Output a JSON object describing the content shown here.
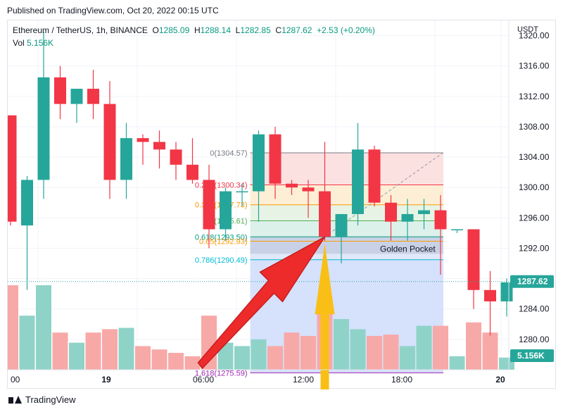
{
  "published": "Published on TradingView.com, Oct 20, 2022 00:15 UTC",
  "legend": {
    "symbol": "Ethereum / TetherUS, 1h, BINANCE",
    "o_label": "O",
    "o": "1285.09",
    "h_label": "H",
    "h": "1288.14",
    "l_label": "L",
    "l": "1282.85",
    "c_label": "C",
    "c": "1287.62",
    "change": "+2.53 (+0.20%)",
    "vol_label": "Vol",
    "vol": "5.156K"
  },
  "currency": "USDT",
  "footer": {
    "brand": "TradingView"
  },
  "colors": {
    "up": "#26a69a",
    "down": "#f23645",
    "up_vol": "#8fd3c8",
    "down_vol": "#f7a9a7"
  },
  "chart_data": {
    "type": "candlestick",
    "ylim": [
      1276,
      1322
    ],
    "y_ticks": [
      "1320.00",
      "1316.00",
      "1312.00",
      "1308.00",
      "1304.00",
      "1300.00",
      "1296.00",
      "1292.00",
      "1288.00",
      "1284.00",
      "1280.00"
    ],
    "x_ticks": [
      "00",
      "19",
      "06:00",
      "12:00",
      "18:00",
      "20"
    ],
    "last_price_label": "1287.62",
    "last_volume_label": "5.156K",
    "candles": [
      {
        "o": 1309.5,
        "h": 1309.5,
        "l": 1295.0,
        "c": 1295.5
      },
      {
        "o": 1295.0,
        "h": 1301.5,
        "l": 1286.5,
        "c": 1301.0
      },
      {
        "o": 1301.0,
        "h": 1320.5,
        "l": 1298.5,
        "c": 1314.5
      },
      {
        "o": 1314.5,
        "h": 1316.0,
        "l": 1309.0,
        "c": 1311.0
      },
      {
        "o": 1311.0,
        "h": 1313.0,
        "l": 1308.5,
        "c": 1313.0
      },
      {
        "o": 1313.0,
        "h": 1315.5,
        "l": 1309.0,
        "c": 1311.0
      },
      {
        "o": 1311.0,
        "h": 1314.0,
        "l": 1298.5,
        "c": 1301.0
      },
      {
        "o": 1301.0,
        "h": 1308.5,
        "l": 1298.5,
        "c": 1306.5
      },
      {
        "o": 1306.5,
        "h": 1307.0,
        "l": 1303.0,
        "c": 1306.0
      },
      {
        "o": 1306.0,
        "h": 1307.5,
        "l": 1302.5,
        "c": 1305.0
      },
      {
        "o": 1305.0,
        "h": 1306.0,
        "l": 1301.0,
        "c": 1303.0
      },
      {
        "o": 1303.0,
        "h": 1306.5,
        "l": 1300.5,
        "c": 1301.0
      },
      {
        "o": 1301.0,
        "h": 1303.0,
        "l": 1292.0,
        "c": 1294.5
      },
      {
        "o": 1294.5,
        "h": 1300.0,
        "l": 1293.0,
        "c": 1299.5
      },
      {
        "o": 1299.5,
        "h": 1300.5,
        "l": 1297.5,
        "c": 1299.5
      },
      {
        "o": 1299.5,
        "h": 1307.5,
        "l": 1295.5,
        "c": 1307.0
      },
      {
        "o": 1307.0,
        "h": 1308.0,
        "l": 1298.5,
        "c": 1300.5
      },
      {
        "o": 1300.5,
        "h": 1301.0,
        "l": 1299.0,
        "c": 1300.0
      },
      {
        "o": 1300.0,
        "h": 1301.0,
        "l": 1296.0,
        "c": 1299.5
      },
      {
        "o": 1299.5,
        "h": 1306.0,
        "l": 1293.0,
        "c": 1293.5
      },
      {
        "o": 1293.5,
        "h": 1296.5,
        "l": 1290.0,
        "c": 1296.5
      },
      {
        "o": 1296.5,
        "h": 1308.5,
        "l": 1295.0,
        "c": 1305.0
      },
      {
        "o": 1305.0,
        "h": 1305.5,
        "l": 1297.5,
        "c": 1298.0
      },
      {
        "o": 1298.0,
        "h": 1299.0,
        "l": 1293.0,
        "c": 1295.5
      },
      {
        "o": 1295.5,
        "h": 1298.5,
        "l": 1293.0,
        "c": 1296.5
      },
      {
        "o": 1296.5,
        "h": 1298.5,
        "l": 1294.5,
        "c": 1297.0
      },
      {
        "o": 1297.0,
        "h": 1299.0,
        "l": 1288.5,
        "c": 1294.5
      },
      {
        "o": 1294.5,
        "h": 1294.5,
        "l": 1294.0,
        "c": 1294.5
      },
      {
        "o": 1294.5,
        "h": 1294.5,
        "l": 1284.0,
        "c": 1286.5
      },
      {
        "o": 1286.5,
        "h": 1289.0,
        "l": 1280.5,
        "c": 1285.0
      },
      {
        "o": 1285.0,
        "h": 1288.0,
        "l": 1283.0,
        "c": 1287.5
      }
    ],
    "volumes": [
      12.5,
      8.0,
      12.5,
      5.5,
      4.0,
      5.5,
      6.0,
      6.2,
      3.5,
      3.0,
      2.5,
      2.0,
      8.0,
      4.0,
      3.5,
      4.5,
      3.5,
      5.5,
      5.0,
      9.0,
      7.5,
      6.0,
      5.0,
      5.2,
      3.5,
      6.5,
      6.5,
      2.0,
      7.0,
      5.5,
      1.8
    ],
    "fibonacci": {
      "levels": [
        {
          "label": "0(1304.57)",
          "value": 1304.57,
          "color": "#787b86"
        },
        {
          "label": "0.236(1300.34)",
          "value": 1300.34,
          "color": "#f23645"
        },
        {
          "label": "0.382(1297.73)",
          "value": 1297.73,
          "color": "#ff9800"
        },
        {
          "label": "0.5(1295.61)",
          "value": 1295.61,
          "color": "#4caf50"
        },
        {
          "label": "0.618(1293.50)",
          "value": 1293.5,
          "color": "#089981"
        },
        {
          "label": "0.65(1292.93)",
          "value": 1292.93,
          "color": "#ff9800"
        },
        {
          "label": "0.786(1290.49)",
          "value": 1290.49,
          "color": "#00bcd4"
        },
        {
          "label": "1.618(1275.59)",
          "value": 1275.59,
          "color": "#9c27b0"
        }
      ],
      "golden_pocket_label": "Golden Pocket"
    }
  }
}
